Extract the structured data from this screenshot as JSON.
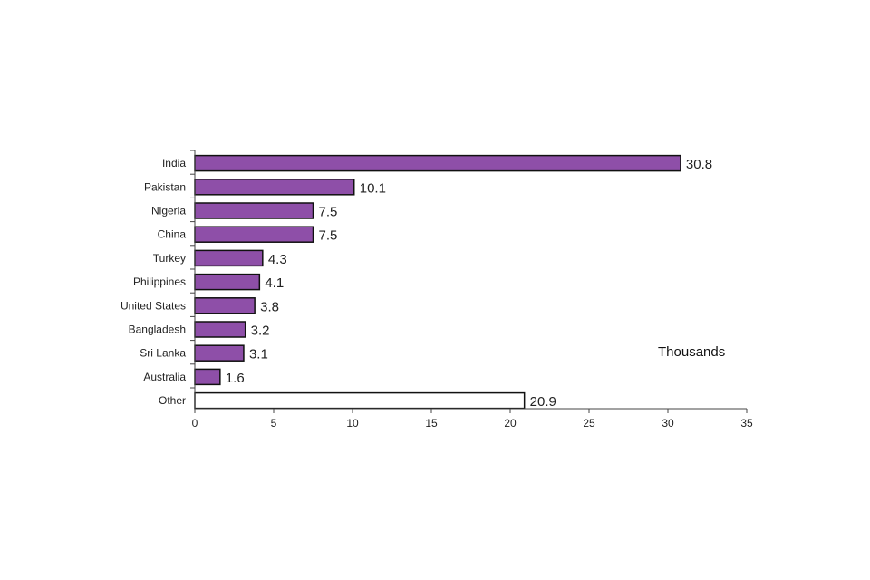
{
  "chart_data": {
    "type": "bar",
    "orientation": "horizontal",
    "title": "",
    "xlabel": "",
    "ylabel": "",
    "unit_label": "Thousands",
    "categories": [
      "India",
      "Pakistan",
      "Nigeria",
      "China",
      "Turkey",
      "Philippines",
      "United States",
      "Bangladesh",
      "Sri Lanka",
      "Australia",
      "Other"
    ],
    "values": [
      30.8,
      10.1,
      7.5,
      7.5,
      4.3,
      4.1,
      3.8,
      3.2,
      3.1,
      1.6,
      20.9
    ],
    "value_labels": [
      "30.8",
      "10.1",
      "7.5",
      "7.5",
      "4.3",
      "4.1",
      "3.8",
      "3.2",
      "3.1",
      "1.6",
      "20.9"
    ],
    "bar_colors": [
      "#8e4fa8",
      "#8e4fa8",
      "#8e4fa8",
      "#8e4fa8",
      "#8e4fa8",
      "#8e4fa8",
      "#8e4fa8",
      "#8e4fa8",
      "#8e4fa8",
      "#8e4fa8",
      "#ffffff"
    ],
    "xlim": [
      0,
      35
    ],
    "xticks": [
      "0",
      "5",
      "10",
      "15",
      "20",
      "25",
      "30",
      "35"
    ],
    "grid": false,
    "legend": "none"
  }
}
